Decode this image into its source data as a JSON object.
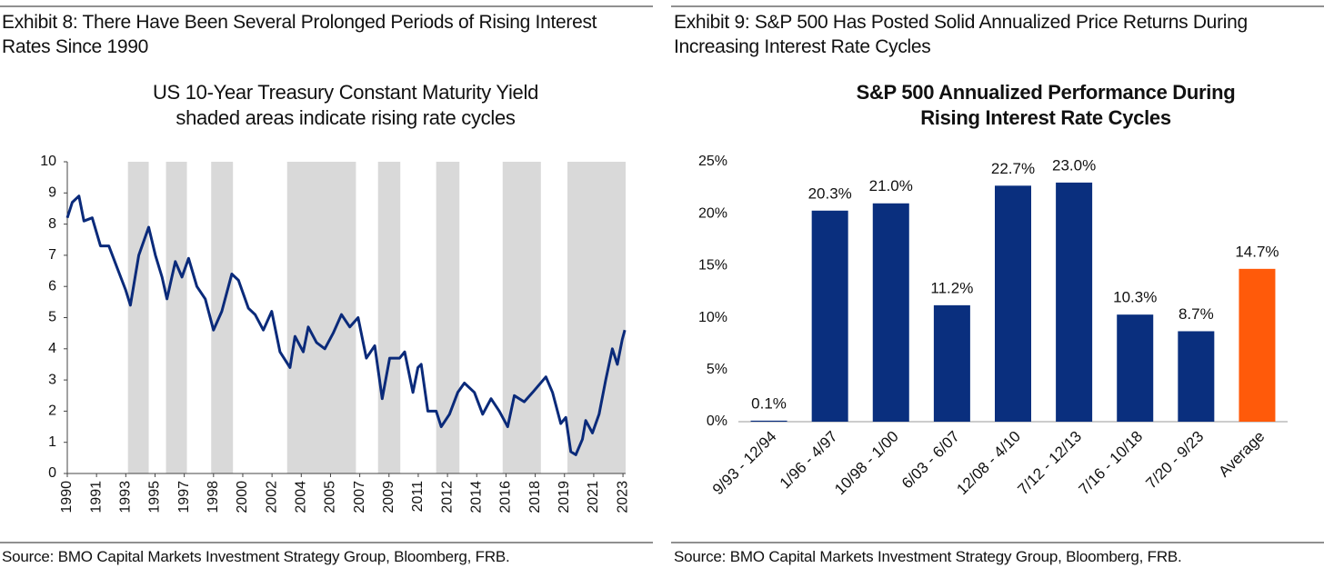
{
  "chart_data": [
    {
      "type": "line",
      "header": "Exhibit 8: There Have Been Several Prolonged Periods of Rising Interest Rates Since 1990",
      "title": "US 10-Year Treasury Constant Maturity Yield",
      "subtitle": "shaded areas indicate rising rate cycles",
      "source": "Source: BMO Capital Markets Investment Strategy Group, Bloomberg, FRB.",
      "color": "#0a2a7a",
      "shade_color": "#d9d9d9",
      "shaded_periods": [
        [
          1993.65,
          1994.9
        ],
        [
          1995.94,
          1997.2
        ],
        [
          1998.66,
          1999.97
        ],
        [
          2003.23,
          2007.37
        ],
        [
          2008.7,
          2010.04
        ],
        [
          2012.2,
          2013.6
        ],
        [
          2016.2,
          2018.5
        ],
        [
          2020.1,
          2023.6
        ]
      ],
      "x": [
        1990.0,
        1990.3,
        1990.7,
        1991.0,
        1991.5,
        1992.0,
        1992.5,
        1993.0,
        1993.5,
        1993.8,
        1994.3,
        1994.9,
        1995.3,
        1995.7,
        1996.0,
        1996.5,
        1996.9,
        1997.3,
        1997.8,
        1998.3,
        1998.8,
        1999.3,
        1999.9,
        2000.3,
        2000.9,
        2001.3,
        2001.8,
        2002.3,
        2002.8,
        2003.4,
        2003.7,
        2004.2,
        2004.5,
        2005.0,
        2005.5,
        2006.0,
        2006.5,
        2007.0,
        2007.5,
        2008.0,
        2008.5,
        2008.95,
        2009.4,
        2010.0,
        2010.3,
        2010.8,
        2011.1,
        2011.3,
        2011.7,
        2012.2,
        2012.5,
        2013.0,
        2013.5,
        2013.9,
        2014.5,
        2015.0,
        2015.5,
        2016.0,
        2016.5,
        2016.9,
        2017.5,
        2018.0,
        2018.8,
        2019.2,
        2019.7,
        2020.0,
        2020.3,
        2020.6,
        2021.0,
        2021.2,
        2021.6,
        2022.0,
        2022.4,
        2022.8,
        2023.1,
        2023.4,
        2023.55
      ],
      "values": [
        8.2,
        8.7,
        8.9,
        8.1,
        8.2,
        7.3,
        7.3,
        6.6,
        5.9,
        5.4,
        7.0,
        7.9,
        7.0,
        6.3,
        5.6,
        6.8,
        6.3,
        6.9,
        6.0,
        5.6,
        4.6,
        5.2,
        6.4,
        6.2,
        5.3,
        5.1,
        4.6,
        5.2,
        3.9,
        3.4,
        4.4,
        3.9,
        4.7,
        4.2,
        4.0,
        4.5,
        5.1,
        4.7,
        5.0,
        3.7,
        4.1,
        2.4,
        3.7,
        3.7,
        3.9,
        2.6,
        3.4,
        3.5,
        2.0,
        2.0,
        1.5,
        1.9,
        2.6,
        2.9,
        2.6,
        1.9,
        2.4,
        2.0,
        1.5,
        2.5,
        2.3,
        2.6,
        3.1,
        2.6,
        1.6,
        1.8,
        0.7,
        0.6,
        1.1,
        1.7,
        1.3,
        1.9,
        3.0,
        4.0,
        3.5,
        4.3,
        4.6
      ],
      "xlim": [
        1990,
        2023.6
      ],
      "xticks": [
        {
          "value": 1990,
          "label": "1990"
        },
        {
          "value": 1991.76,
          "label": "1991"
        },
        {
          "value": 1993.52,
          "label": "1993"
        },
        {
          "value": 1995.28,
          "label": "1995"
        },
        {
          "value": 1997.04,
          "label": "1997"
        },
        {
          "value": 1998.8,
          "label": "1998"
        },
        {
          "value": 2000.56,
          "label": "2000"
        },
        {
          "value": 2002.32,
          "label": "2002"
        },
        {
          "value": 2004.08,
          "label": "2004"
        },
        {
          "value": 2005.84,
          "label": "2005"
        },
        {
          "value": 2007.6,
          "label": "2007"
        },
        {
          "value": 2009.36,
          "label": "2009"
        },
        {
          "value": 2011.12,
          "label": "2011"
        },
        {
          "value": 2012.88,
          "label": "2012"
        },
        {
          "value": 2014.64,
          "label": "2014"
        },
        {
          "value": 2016.4,
          "label": "2016"
        },
        {
          "value": 2018.16,
          "label": "2018"
        },
        {
          "value": 2019.92,
          "label": "2019"
        },
        {
          "value": 2021.68,
          "label": "2021"
        },
        {
          "value": 2023.44,
          "label": "2023"
        }
      ],
      "ylim": [
        0,
        10
      ],
      "yticks": [
        0,
        1,
        2,
        3,
        4,
        5,
        6,
        7,
        8,
        9,
        10
      ]
    },
    {
      "type": "bar",
      "header": "Exhibit 9: S&P 500 Has Posted Solid Annualized Price Returns During Increasing Interest Rate Cycles",
      "title": "S&P 500 Annualized Performance During Rising Interest Rate Cycles",
      "source": "Source: BMO Capital Markets Investment Strategy Group, Bloomberg, FRB.",
      "categories": [
        "9/93 - 12/94",
        "1/96 - 4/97",
        "10/98 - 1/00",
        "6/03 - 6/07",
        "12/08 - 4/10",
        "7/12 - 12/13",
        "7/16 - 10/18",
        "7/20 - 9/23",
        "Average"
      ],
      "values": [
        0.1,
        20.3,
        21.0,
        11.2,
        22.7,
        23.0,
        10.3,
        8.7,
        14.7
      ],
      "value_labels": [
        "0.1%",
        "20.3%",
        "21.0%",
        "11.2%",
        "22.7%",
        "23.0%",
        "10.3%",
        "8.7%",
        "14.7%"
      ],
      "colors": [
        "#0a2f7e",
        "#0a2f7e",
        "#0a2f7e",
        "#0a2f7e",
        "#0a2f7e",
        "#0a2f7e",
        "#0a2f7e",
        "#0a2f7e",
        "#ff5a0a"
      ],
      "ylim": [
        0,
        25
      ],
      "yticks": [
        {
          "value": 0,
          "label": "0%"
        },
        {
          "value": 5,
          "label": "5%"
        },
        {
          "value": 10,
          "label": "10%"
        },
        {
          "value": 15,
          "label": "15%"
        },
        {
          "value": 20,
          "label": "20%"
        },
        {
          "value": 25,
          "label": "25%"
        }
      ]
    }
  ]
}
